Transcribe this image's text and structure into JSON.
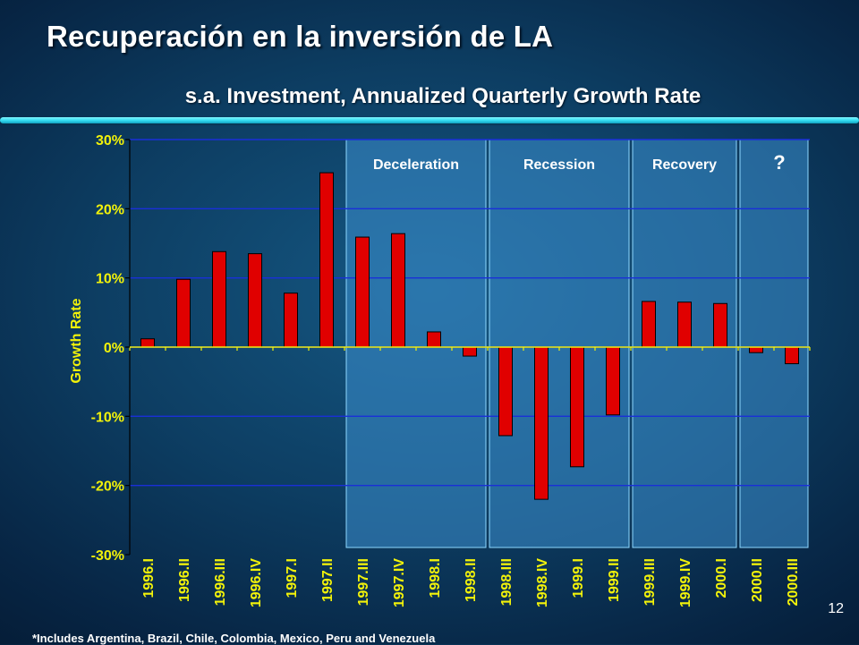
{
  "title": "Recuperación en la inversión de LA",
  "subtitle": "s.a. Investment, Annualized Quarterly Growth Rate",
  "page_number": "12",
  "footnote": "*Includes Argentina, Brazil, Chile, Colombia, Mexico, Peru and Venezuela",
  "colors": {
    "bar": "#e00000",
    "gridline": "#1a2fd8",
    "axis_text": "#f2f20a",
    "phase_fill": "#3d8fd0",
    "phase_stroke": "#8fd8ff",
    "rule": "#31d9f0"
  },
  "chart_data": {
    "type": "bar",
    "ylabel": "Growth Rate",
    "ylim": [
      -30,
      30
    ],
    "yticks": [
      30,
      20,
      10,
      0,
      -10,
      -20,
      -30
    ],
    "ytick_labels": [
      "30%",
      "20%",
      "10%",
      "0%",
      "-10%",
      "-20%",
      "-30%"
    ],
    "grid": true,
    "categories": [
      "1996.I",
      "1996.II",
      "1996.III",
      "1996.IV",
      "1997.I",
      "1997.II",
      "1997.III",
      "1997.IV",
      "1998.I",
      "1998.II",
      "1998.III",
      "1998.IV",
      "1999.I",
      "1999.II",
      "1999.III",
      "1999.IV",
      "2000.I",
      "2000.II",
      "2000.III"
    ],
    "values": [
      1.2,
      9.8,
      13.8,
      13.5,
      7.8,
      25.2,
      15.9,
      16.4,
      2.2,
      -1.3,
      -12.8,
      -22.0,
      -17.3,
      -9.8,
      6.6,
      6.5,
      6.3,
      -0.8,
      -2.4
    ],
    "annotations": [
      {
        "label": "Deceleration",
        "from": "1997.III",
        "to": "1998.II"
      },
      {
        "label": "Recession",
        "from": "1998.III",
        "to": "1999.II"
      },
      {
        "label": "Recovery",
        "from": "1999.III",
        "to": "2000.I"
      },
      {
        "label": "?",
        "from": "2000.II",
        "to": "2000.III"
      }
    ]
  }
}
